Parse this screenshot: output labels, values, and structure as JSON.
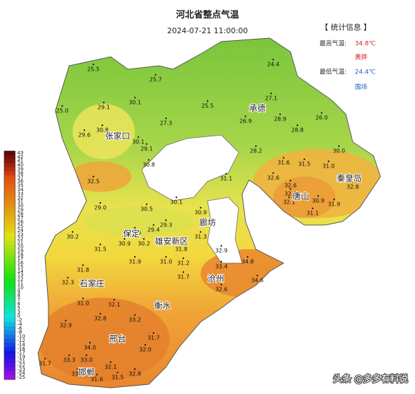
{
  "header": {
    "title": "河北省整点气温",
    "time": "2024-07-21 11:00:00"
  },
  "stats": {
    "title": "【 统计信息 】",
    "max_label": "最高气温:",
    "max_value": "34.8℃",
    "max_station": "黄骅",
    "min_label": "最低气温:",
    "min_value": "24.4℃",
    "min_station": "围场"
  },
  "legend": [
    "43",
    "42",
    "41",
    "40",
    "39",
    "38",
    "37",
    "36",
    "35",
    "34",
    "33",
    "32",
    "31",
    "30",
    "29",
    "28",
    "27",
    "26",
    "25",
    "24",
    "23",
    "22",
    "21",
    "20",
    "19",
    "18",
    "17",
    "16",
    "15",
    "14",
    "13",
    "12",
    "11",
    "10",
    "9",
    "8",
    "7",
    "6",
    "5",
    "3",
    "0",
    "-2",
    "-4",
    "-6",
    "-8",
    "-10",
    "-12",
    "-14",
    "-16",
    "-17",
    "-19",
    "-21",
    "-22",
    "-23",
    "-24",
    "-25"
  ],
  "cities": [
    "张家口",
    "承德",
    "秦皇岛",
    "唐山",
    "廊坊",
    "保定",
    "雄安新区",
    "沧州",
    "石家庄",
    "衡水",
    "邢台",
    "邯郸"
  ],
  "readings": [
    "25.5",
    "25.7",
    "24.4",
    "25.0",
    "29.1",
    "30.1",
    "27.3",
    "25.5",
    "27.1",
    "26.9",
    "28.9",
    "26.0",
    "28.8",
    "29.6",
    "30.8",
    "30.1",
    "29.1",
    "30.8",
    "28.2",
    "30.0",
    "31.6",
    "31.5",
    "31.0",
    "32.5",
    "31.1",
    "32.6",
    "32.6",
    "32.4",
    "32.8",
    "32.1",
    "30.9",
    "31.9",
    "31.1",
    "29.0",
    "30.5",
    "30.1",
    "30.9",
    "29.3",
    "30.2",
    "29.6",
    "29.4",
    "31.3",
    "32.9",
    "31.5",
    "30.9",
    "30.2",
    "31.8",
    "33.4",
    "34.8",
    "34.6",
    "31.9",
    "31.0",
    "31.2",
    "32.3",
    "31.8",
    "31.7",
    "32.6",
    "31.0",
    "32.1",
    "32.9",
    "32.8",
    "33.2",
    "31.7",
    "34.0",
    "33.0",
    "32.0",
    "31.7",
    "33.3",
    "33.2",
    "31.6",
    "31.5",
    "32.1",
    "32.8"
  ],
  "watermark": "头条 @多多有料说"
}
